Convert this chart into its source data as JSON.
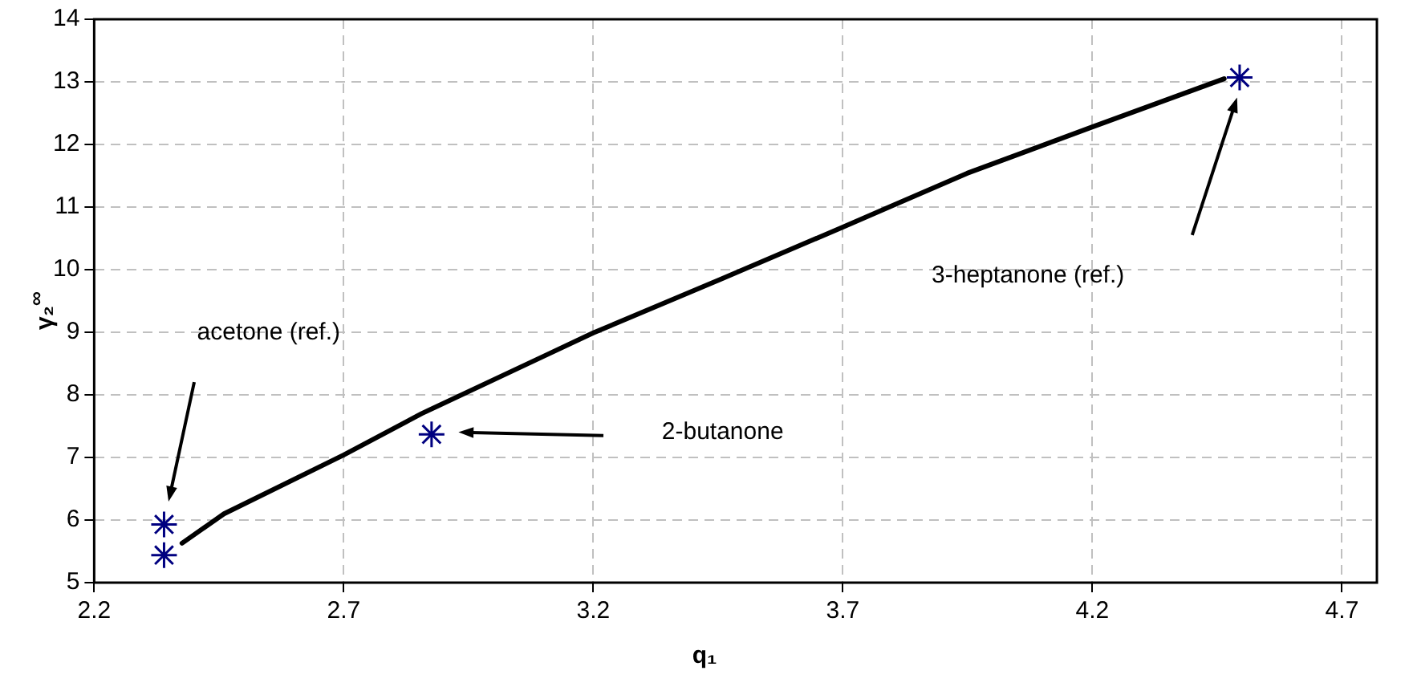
{
  "chart_data": {
    "type": "line",
    "xlabel": "q₁",
    "ylabel": "γ₂$^{∞}$",
    "xlim": [
      2.2,
      4.77
    ],
    "xticks": [
      2.2,
      2.7,
      3.2,
      3.7,
      4.2,
      4.7
    ],
    "ylim": [
      5,
      14
    ],
    "yticks": [
      5,
      6,
      7,
      8,
      9,
      10,
      11,
      12,
      13,
      14
    ],
    "grid": true,
    "legend": false,
    "series": [
      {
        "color": "#000000",
        "marker": "none",
        "x": [
          2.376,
          2.46,
          2.7,
          2.856,
          3.104,
          3.2,
          3.456,
          3.7,
          3.949,
          4.2,
          4.464
        ],
        "values": [
          5.63,
          6.1,
          7.04,
          7.7,
          8.63,
          8.99,
          9.85,
          10.68,
          11.54,
          12.28,
          13.05
        ]
      },
      {
        "type": "scatter",
        "color": "#000080",
        "marker": "cross",
        "x": [
          2.34,
          2.34,
          2.876,
          4.495
        ],
        "values": [
          5.93,
          5.44,
          7.37,
          13.07
        ]
      }
    ],
    "annotations": [
      "acetone (ref.)",
      "2-butanone",
      "3-heptanone (ref.)"
    ]
  }
}
